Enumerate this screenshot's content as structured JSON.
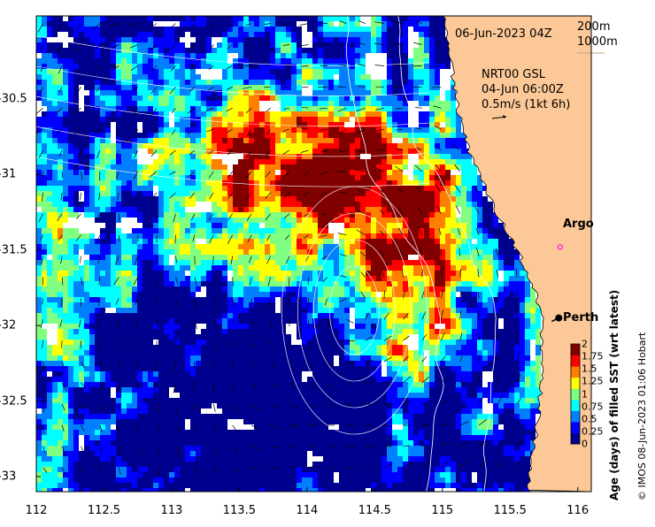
{
  "map": {
    "timestamp": "06-Jun-2023 04Z",
    "contour_keys": [
      "200m",
      "1000m"
    ],
    "product_lines": [
      "NRT00 GSL",
      "04-Jun 06:00Z",
      "0.5m/s (1kt 6h)"
    ],
    "scale_arrow_speed_mps": 0.5,
    "places": [
      {
        "name": "Argo",
        "lon": 115.87,
        "lat": -31.48,
        "marker": "argo-float"
      },
      {
        "name": "Perth",
        "lon": 115.86,
        "lat": -31.95,
        "marker": "city"
      }
    ],
    "x_axis": {
      "range": [
        112,
        116.1
      ],
      "ticks": [
        "112",
        "112.5",
        "113",
        "113.5",
        "114",
        "114.5",
        "115",
        "115.5",
        "116"
      ]
    },
    "y_axis": {
      "range": [
        -33.1,
        -29.95
      ],
      "ticks": [
        "-30.5",
        "-31",
        "-31.5",
        "-32",
        "-32.5",
        "-33"
      ]
    }
  },
  "colorbar": {
    "title": "Age (days) of filled SST (wrt latest)",
    "range": [
      0,
      2
    ],
    "ticks": [
      "0",
      "0.25",
      "0.5",
      "0.75",
      "1",
      "1.25",
      "1.5",
      "1.75",
      "2"
    ],
    "colors": [
      "#00008f",
      "#0000ff",
      "#0080ff",
      "#00ffff",
      "#80ff80",
      "#ffff00",
      "#ff8000",
      "#ff0000",
      "#800000"
    ]
  },
  "credit": "© IMOS 08-Jun-2023 01:06 Hobart",
  "colors": {
    "land": "#fcc897",
    "coast": "#000000",
    "contour": "#ffffff",
    "argo": "#ff00ff"
  }
}
